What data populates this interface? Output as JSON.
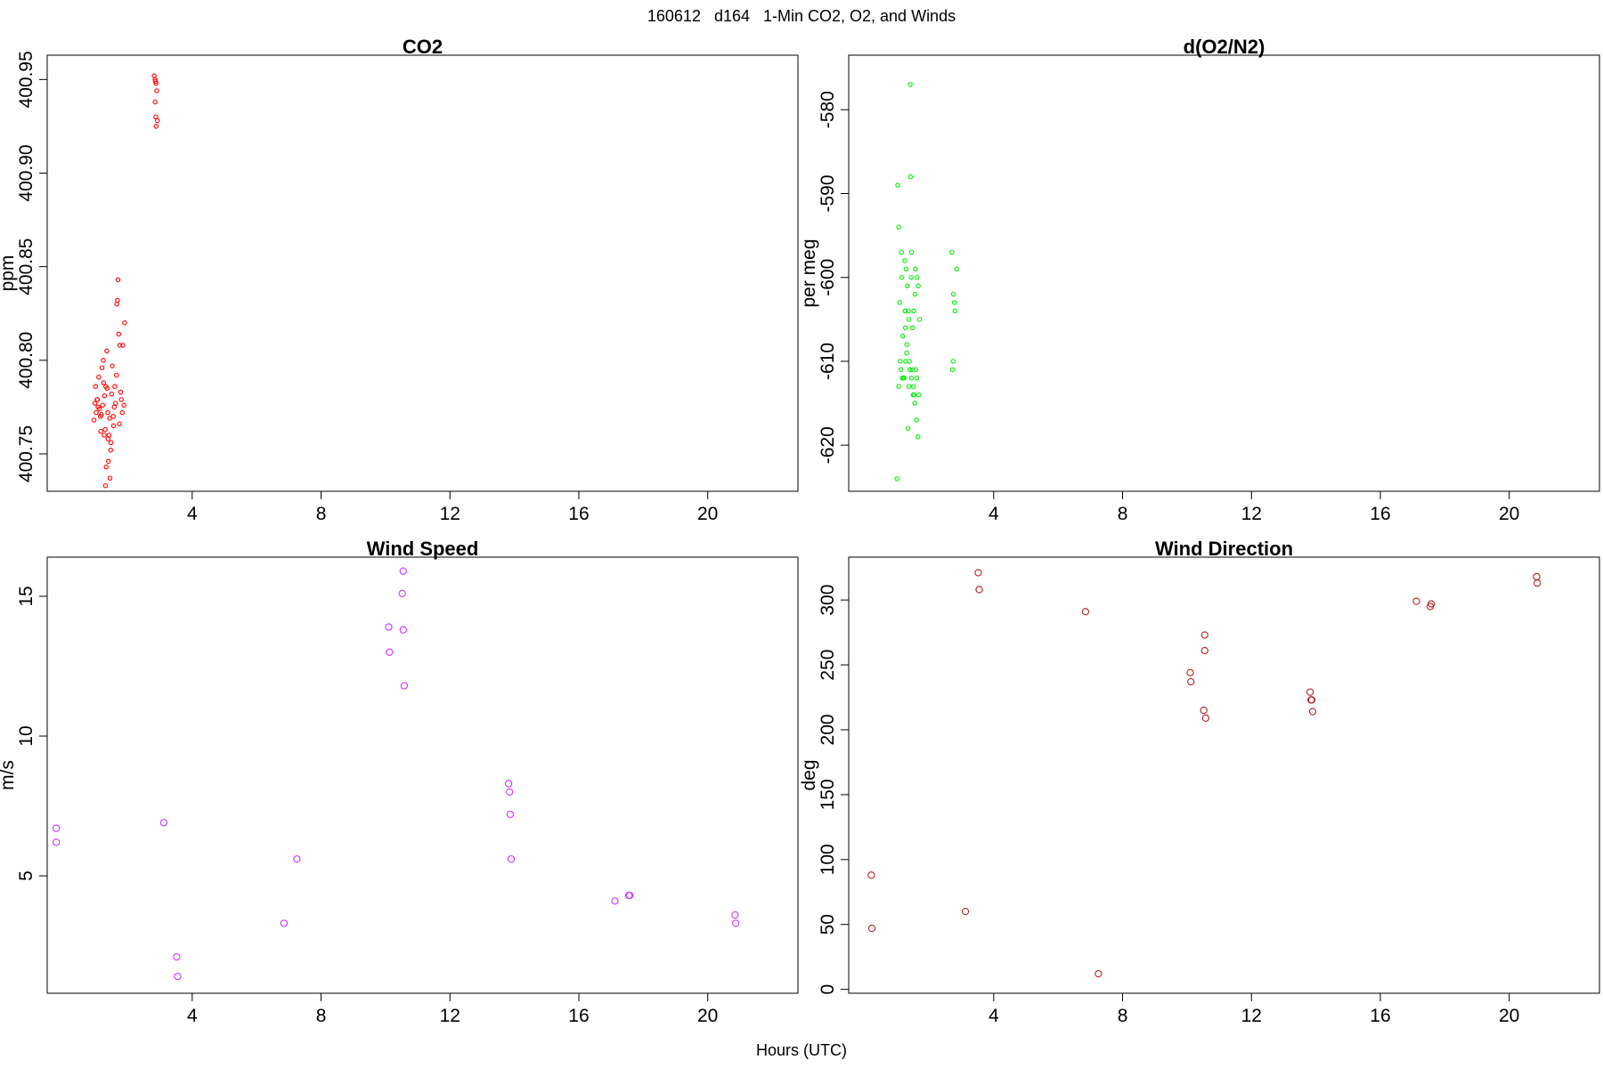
{
  "page": {
    "title": "160612   d164   1-Min CO2, O2, and Winds",
    "xlabel": "Hours (UTC)"
  },
  "chart_data": [
    {
      "id": "co2",
      "type": "scatter",
      "title": "CO2",
      "xlabel": "",
      "ylabel": "ppm",
      "xlim": [
        -0.5,
        22.8
      ],
      "ylim": [
        400.73,
        400.963
      ],
      "xticks": [
        4,
        8,
        12,
        16,
        20
      ],
      "yticks": [
        400.75,
        400.8,
        400.85,
        400.9,
        400.95
      ],
      "ytick_labels": [
        "400.75",
        "400.80",
        "400.85",
        "400.90",
        "400.95"
      ],
      "point_color": "#ff0000",
      "grid": false,
      "x": [
        0.95,
        1.02,
        1.08,
        0.98,
        1.12,
        1.05,
        1.18,
        1.0,
        1.15,
        1.22,
        1.1,
        1.28,
        1.25,
        1.32,
        1.3,
        1.35,
        1.38,
        1.42,
        1.4,
        1.45,
        1.5,
        1.48,
        1.55,
        1.52,
        1.58,
        1.6,
        1.62,
        1.65,
        1.68,
        1.7,
        1.72,
        1.75,
        1.78,
        1.8,
        1.85,
        1.9,
        1.2,
        1.27,
        1.33,
        1.44,
        1.56,
        1.36,
        1.47,
        1.66,
        1.74,
        1.83,
        1.24,
        1.31,
        1.39,
        1.16,
        1.88,
        1.06,
        2.82,
        2.85,
        2.88,
        2.9,
        2.85,
        2.87,
        2.92,
        2.88,
        2.86
      ],
      "y": [
        400.768,
        400.772,
        400.775,
        400.777,
        400.774,
        400.779,
        400.771,
        400.786,
        400.77,
        400.776,
        400.791,
        400.781,
        400.788,
        400.786,
        400.763,
        400.805,
        400.772,
        400.76,
        400.746,
        400.737,
        400.782,
        400.756,
        400.77,
        400.797,
        400.775,
        400.786,
        400.777,
        400.792,
        400.832,
        400.843,
        400.814,
        400.808,
        400.783,
        400.779,
        400.808,
        400.82,
        400.796,
        400.76,
        400.743,
        400.769,
        400.765,
        400.785,
        400.752,
        400.83,
        400.766,
        400.772,
        400.8,
        400.733,
        400.758,
        400.762,
        400.776,
        400.779,
        400.952,
        400.95,
        400.948,
        400.944,
        400.938,
        400.93,
        400.928,
        400.925,
        400.949
      ]
    },
    {
      "id": "o2",
      "type": "scatter",
      "title": "d(O2/N2)",
      "xlabel": "",
      "ylabel": "per meg",
      "xlim": [
        -0.5,
        22.8
      ],
      "ylim": [
        -625.5,
        -573.5
      ],
      "xticks": [
        4,
        8,
        12,
        16,
        20
      ],
      "yticks": [
        -620,
        -610,
        -600,
        -590,
        -580
      ],
      "ytick_labels": [
        "-620",
        "-610",
        "-600",
        "-590",
        "-580"
      ],
      "point_color": "#00ee00",
      "grid": false,
      "x": [
        1.25,
        1.02,
        1.05,
        1.15,
        1.08,
        1.18,
        1.12,
        1.22,
        1.28,
        1.35,
        1.3,
        1.4,
        1.45,
        1.38,
        1.5,
        1.55,
        1.48,
        1.6,
        1.65,
        1.42,
        1.7,
        1.32,
        1.2,
        1.58,
        1.52,
        1.62,
        1.1,
        1.45,
        1.36,
        1.27,
        1.53,
        1.66,
        1.0,
        1.14,
        1.24,
        1.44,
        1.57,
        1.47,
        1.37,
        1.62,
        1.05,
        1.16,
        1.26,
        1.34,
        1.56,
        1.68,
        1.3,
        1.41,
        1.51,
        2.7,
        2.75,
        2.8,
        2.72,
        2.78,
        2.85,
        2.74
      ],
      "y": [
        -604,
        -589,
        -594,
        -600,
        -603,
        -607,
        -611,
        -612,
        -599,
        -604,
        -608,
        -611,
        -612,
        -610,
        -614,
        -615,
        -606,
        -617,
        -619,
        -588,
        -605,
        -601,
        -612,
        -611,
        -604,
        -600,
        -610,
        -597,
        -605,
        -610,
        -614,
        -601,
        -624,
        -597,
        -598,
        -600,
        -599,
        -611,
        -613,
        -612,
        -613,
        -612,
        -606,
        -618,
        -602,
        -614,
        -609,
        -577,
        -613,
        -597,
        -602,
        -604,
        -611,
        -603,
        -599,
        -610
      ]
    },
    {
      "id": "wind_speed",
      "type": "scatter",
      "title": "Wind Speed",
      "xlabel": "",
      "ylabel": "m/s",
      "xlim": [
        -0.5,
        22.8
      ],
      "ylim": [
        0.8,
        16.4
      ],
      "xticks": [
        4,
        8,
        12,
        16,
        20
      ],
      "yticks": [
        5,
        10,
        15
      ],
      "ytick_labels": [
        "5",
        "10",
        "15"
      ],
      "point_color": "#cc33ff",
      "grid": false,
      "x": [
        -0.22,
        -0.22,
        3.12,
        3.52,
        3.55,
        6.85,
        7.25,
        10.1,
        10.12,
        10.52,
        10.55,
        10.55,
        10.58,
        13.82,
        13.85,
        13.87,
        13.9,
        17.12,
        17.55,
        17.58,
        20.85,
        20.87
      ],
      "y": [
        6.7,
        6.2,
        6.9,
        2.1,
        1.4,
        3.3,
        5.6,
        13.9,
        13.0,
        15.1,
        15.9,
        13.8,
        11.8,
        8.3,
        8.0,
        7.2,
        5.6,
        4.1,
        4.3,
        4.3,
        3.6,
        3.3
      ]
    },
    {
      "id": "wind_direction",
      "type": "scatter",
      "title": "Wind Direction",
      "xlabel": "",
      "ylabel": "deg",
      "xlim": [
        -0.5,
        22.8
      ],
      "ylim": [
        -3,
        333
      ],
      "xticks": [
        4,
        8,
        12,
        16,
        20
      ],
      "yticks": [
        0,
        50,
        100,
        150,
        200,
        250,
        300
      ],
      "ytick_labels": [
        "0",
        "50",
        "100",
        "150",
        "200",
        "250",
        "300"
      ],
      "point_color": "#b22222",
      "grid": false,
      "x": [
        0.2,
        0.22,
        3.12,
        3.52,
        3.55,
        6.85,
        7.25,
        10.1,
        10.12,
        10.52,
        10.55,
        10.55,
        10.58,
        13.82,
        13.85,
        13.87,
        13.9,
        17.12,
        17.55,
        17.58,
        20.85,
        20.87
      ],
      "y": [
        88,
        47,
        60,
        321,
        308,
        291,
        12,
        244,
        237,
        215,
        273,
        261,
        209,
        229,
        223,
        223,
        214,
        299,
        295,
        297,
        318,
        313
      ]
    }
  ]
}
